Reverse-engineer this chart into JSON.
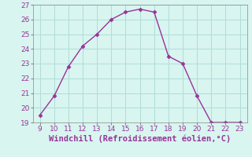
{
  "x": [
    9,
    10,
    11,
    12,
    13,
    14,
    15,
    16,
    17,
    18,
    19,
    20,
    21,
    22,
    23
  ],
  "y": [
    19.5,
    20.8,
    22.8,
    24.2,
    25.0,
    26.0,
    26.5,
    26.7,
    26.5,
    23.5,
    23.0,
    20.8,
    19.0,
    19.0,
    19.0
  ],
  "line_color": "#993399",
  "marker": "D",
  "marker_size": 2.5,
  "background_color": "#d8f5f0",
  "plot_bg_color": "#d8f5f0",
  "grid_color": "#b0ddd8",
  "xlabel": "Windchill (Refroidissement éolien,°C)",
  "xlabel_color": "#993399",
  "xlabel_fontsize": 7.5,
  "ylim": [
    19,
    27
  ],
  "xlim": [
    8.5,
    23.5
  ],
  "yticks": [
    19,
    20,
    21,
    22,
    23,
    24,
    25,
    26,
    27
  ],
  "ytick_labels": [
    "19",
    "20",
    "21",
    "22",
    "23",
    "24",
    "25",
    "26",
    "27"
  ],
  "xticks": [
    9,
    10,
    11,
    12,
    13,
    14,
    15,
    16,
    17,
    18,
    19,
    20,
    21,
    22,
    23
  ],
  "xtick_labels": [
    "9",
    "10",
    "11",
    "12",
    "13",
    "14",
    "15",
    "16",
    "17",
    "18",
    "19",
    "20",
    "21",
    "22",
    "23"
  ],
  "tick_fontsize": 6.5,
  "tick_color": "#993399",
  "spine_color": "#888888",
  "linewidth": 1.0
}
